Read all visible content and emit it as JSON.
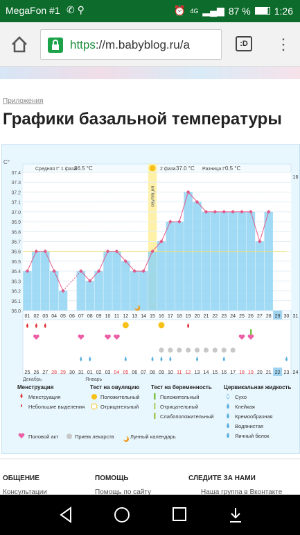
{
  "status": {
    "carrier": "MegaFon #1",
    "network": "4G",
    "battery": "87 %",
    "time": "1:26"
  },
  "browser": {
    "url_scheme": "https",
    "url_rest": "://m.babyblog.ru/a",
    "tabs_label": ":D"
  },
  "page": {
    "breadcrumb": "Приложения",
    "title": "Графики базальной температуры"
  },
  "chart_data": {
    "type": "line",
    "ylabel": "C°",
    "yticks": [
      "37.4",
      "37.3",
      "37.2",
      "37.1",
      "37.0",
      "36.9",
      "36.8",
      "36.7",
      "36.6",
      "36.5",
      "36.4",
      "36.3",
      "36.2",
      "36.1",
      "36.0"
    ],
    "ylim": [
      36.0,
      37.4
    ],
    "phase1_label": "Средняя t° 1 фаза",
    "phase1_value": "36.5 °C",
    "phase2_label": "2 фаза",
    "phase2_value": "37.0 °C",
    "diff_label": "Разница t°",
    "diff_value": "0.5 °C",
    "ovulation_label": "овуляция",
    "coverline": 36.6,
    "days": [
      "01",
      "02",
      "03",
      "04",
      "05",
      "06",
      "07",
      "08",
      "09",
      "10",
      "11",
      "12",
      "13",
      "14",
      "15",
      "16",
      "17",
      "18",
      "19",
      "20",
      "21",
      "22",
      "23",
      "24",
      "25",
      "26",
      "27",
      "28",
      "29",
      "30",
      "31"
    ],
    "cycle_days_phase2": [
      "01",
      "02",
      "03",
      "04",
      "05",
      "06",
      "07",
      "08",
      "09",
      "10",
      "11",
      "12",
      "13",
      "14",
      "15",
      "16"
    ],
    "temps": [
      36.4,
      36.6,
      36.6,
      36.4,
      36.2,
      null,
      36.4,
      36.3,
      36.4,
      36.6,
      36.6,
      36.5,
      36.4,
      36.4,
      36.6,
      36.7,
      36.9,
      36.9,
      37.2,
      37.1,
      37.0,
      37.0,
      37.0,
      37.0,
      37.0,
      37.0,
      36.7,
      37.0,
      null,
      null,
      null
    ],
    "highlight_day": "29",
    "dates_row1": [
      "25",
      "26",
      "27",
      "28",
      "29",
      "30",
      "31",
      "01",
      "02",
      "03",
      "04",
      "05",
      "06",
      "07",
      "08",
      "09",
      "10",
      "11",
      "12",
      "13",
      "14",
      "15",
      "16",
      "17",
      "18",
      "19",
      "20",
      "21",
      "22",
      "23",
      "24"
    ],
    "month_dec": "Декабрь",
    "month_jan": "Январь",
    "red_dates": [
      "28",
      "29",
      "04",
      "05",
      "11",
      "12",
      "18",
      "19"
    ],
    "highlight_date": "22"
  },
  "legend": {
    "menstruation_title": "Менструация",
    "menstruation": "Менструация",
    "spotting": "Небольшие выделения",
    "ovulation_test_title": "Тест на овуляцию",
    "positive": "Положительный",
    "negative": "Отрицательный",
    "pregnancy_test_title": "Тест на беременность",
    "preg_positive": "Положительный",
    "preg_negative": "Отрицательный",
    "preg_weak": "Слабоположительный",
    "cervical_title": "Цервикальная жидкость",
    "dry": "Сухо",
    "sticky": "Клейкая",
    "creamy": "Кремообразная",
    "watery": "Водянистая",
    "eggwhite": "Яичный белок",
    "intercourse": "Половой акт",
    "medication": "Прием лекарств",
    "lunar": "Лунный календарь"
  },
  "footer": {
    "col1": "ОБЩЕНИЕ",
    "col2": "ПОМОЩЬ",
    "col3": "СЛЕДИТЕ ЗА НАМИ",
    "sub1": "Консультации",
    "sub2": "Помощь по сайту",
    "sub3": "Наша группа в Вконтакте"
  },
  "colors": {
    "status_bg": "#0d6b2c",
    "chart_fill": "#8fd3f2",
    "line": "#e05a8a",
    "ovulation": "#fff2a8"
  }
}
